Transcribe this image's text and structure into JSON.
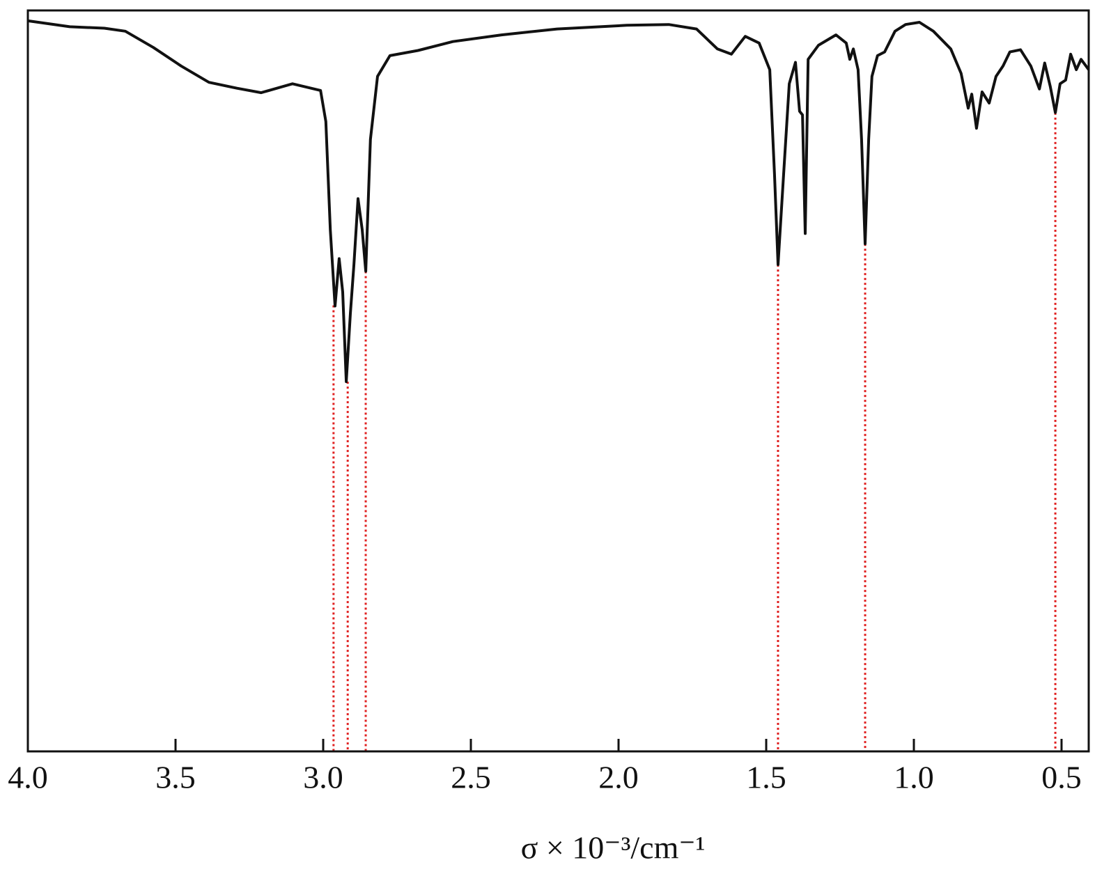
{
  "chart_data": {
    "type": "line",
    "x_label": "σ × 10⁻³/cm⁻¹",
    "xlim": [
      4.0,
      0.408
    ],
    "ylim": [
      0,
      100
    ],
    "xticks": [
      {
        "value": 4,
        "label": "4.0"
      },
      3.5,
      {
        "value": 3,
        "label": "3.0"
      },
      2.5,
      {
        "value": 2,
        "label": "2.0"
      },
      1.5,
      {
        "value": 1,
        "label": "1.0"
      },
      0.5
    ],
    "series": [
      {
        "color": "#111111",
        "x": [
          4.0,
          3.858,
          3.741,
          3.67,
          3.575,
          3.481,
          3.387,
          3.292,
          3.21,
          3.104,
          3.009,
          2.991,
          2.976,
          2.96,
          2.946,
          2.934,
          2.922,
          2.908,
          2.896,
          2.882,
          2.868,
          2.856,
          2.84,
          2.816,
          2.774,
          2.679,
          2.561,
          2.396,
          2.208,
          1.972,
          1.83,
          1.736,
          1.665,
          1.618,
          1.571,
          1.524,
          1.488,
          1.472,
          1.46,
          1.441,
          1.422,
          1.401,
          1.387,
          1.377,
          1.368,
          1.358,
          1.323,
          1.264,
          1.229,
          1.217,
          1.205,
          1.189,
          1.177,
          1.165,
          1.153,
          1.142,
          1.123,
          1.099,
          1.064,
          1.028,
          0.981,
          0.934,
          0.875,
          0.84,
          0.816,
          0.804,
          0.788,
          0.769,
          0.745,
          0.722,
          0.698,
          0.675,
          0.639,
          0.604,
          0.575,
          0.557,
          0.538,
          0.521,
          0.505,
          0.486,
          0.469,
          0.45,
          0.434,
          0.408
        ],
        "values": [
          98.6,
          97.8,
          97.6,
          97.2,
          95.0,
          92.5,
          90.3,
          89.5,
          88.9,
          90.1,
          89.2,
          85.0,
          70.4,
          60.1,
          66.5,
          62.0,
          49.9,
          59.1,
          65.7,
          74.6,
          70.4,
          64.8,
          82.6,
          91.1,
          93.9,
          94.6,
          95.8,
          96.7,
          97.5,
          98.0,
          98.1,
          97.5,
          94.8,
          94.1,
          96.5,
          95.6,
          92.0,
          77.9,
          65.7,
          77.9,
          90.1,
          93.0,
          86.4,
          85.9,
          69.9,
          93.4,
          95.3,
          96.7,
          95.6,
          93.4,
          94.8,
          92.0,
          82.6,
          68.5,
          82.6,
          91.1,
          93.9,
          94.4,
          97.2,
          98.1,
          98.4,
          97.2,
          94.8,
          91.5,
          86.8,
          88.7,
          84.1,
          89.0,
          87.5,
          91.1,
          92.5,
          94.4,
          94.7,
          92.5,
          89.4,
          92.9,
          89.7,
          86.2,
          90.1,
          90.6,
          94.1,
          92.0,
          93.4,
          92.0
        ]
      }
    ],
    "peaks": {
      "color": "#e02020",
      "x": [
        2.965,
        2.917,
        2.856,
        1.46,
        1.165,
        0.521
      ],
      "y": [
        60.2,
        49.9,
        64.8,
        65.7,
        68.5,
        86.2
      ]
    }
  }
}
